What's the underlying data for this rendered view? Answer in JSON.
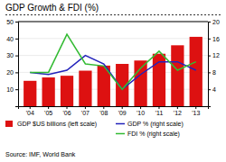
{
  "chart_data": {
    "type": "bar",
    "title": "GDP Growth & FDI (%)",
    "categories": [
      "'04",
      "'05",
      "'06",
      "'07",
      "'08",
      "'09",
      "'10",
      "'11",
      "'12",
      "'13"
    ],
    "series": [
      {
        "name": "GDP $US billions (left scale)",
        "type": "bar",
        "color": "#dd1111",
        "values": [
          15,
          17,
          18,
          21,
          24,
          25,
          27,
          31,
          36,
          41
        ]
      },
      {
        "name": "GDP % (right scale)",
        "type": "line",
        "color": "#2222bb",
        "axis": "y2",
        "values": [
          8,
          7.5,
          8.5,
          12,
          10,
          4,
          7.5,
          10.5,
          10.5,
          8.5
        ]
      },
      {
        "name": "FDI % (right scale)",
        "type": "line",
        "color": "#33bb33",
        "axis": "y2",
        "values": [
          8,
          8,
          17,
          10,
          9.5,
          4,
          9,
          13,
          8.5,
          10.5
        ]
      }
    ],
    "ylim": [
      0,
      50
    ],
    "yticks": [
      10,
      20,
      30,
      40,
      50
    ],
    "y2lim": [
      0,
      20
    ],
    "y2ticks": [
      4,
      8,
      12,
      16,
      20
    ],
    "grid": true,
    "legend": "bottom",
    "annotations": [
      "Source: IMF, World Bank"
    ]
  }
}
